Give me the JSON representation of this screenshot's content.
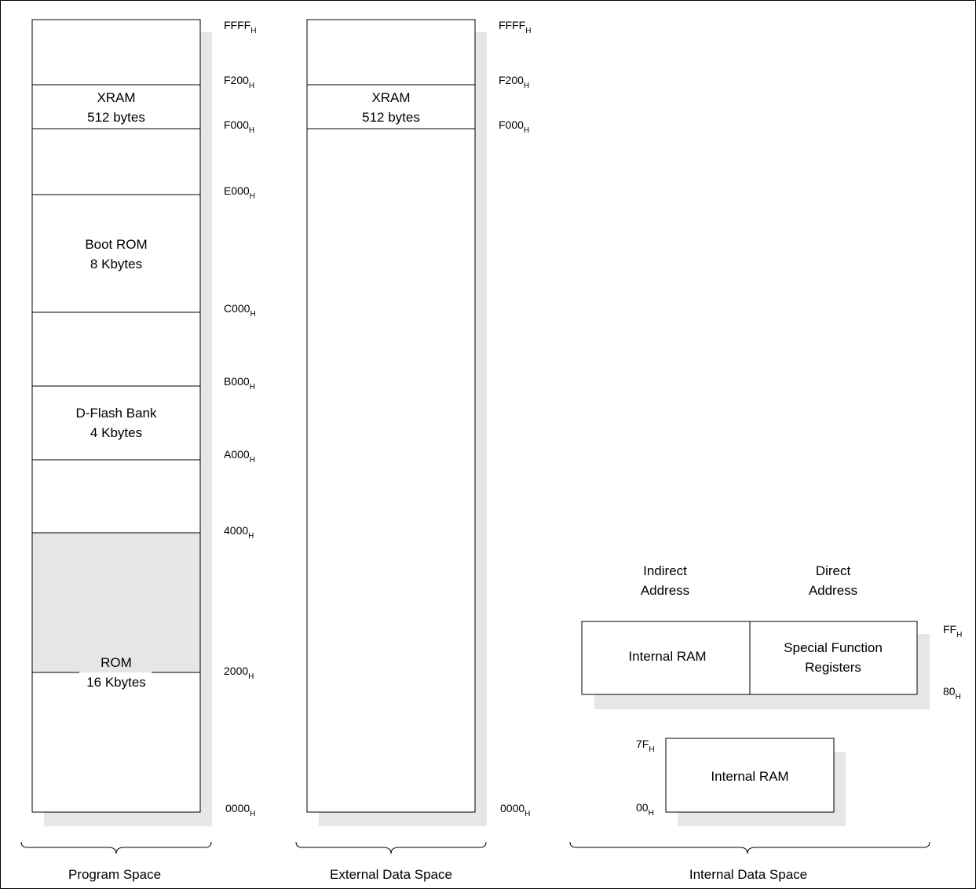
{
  "program_space": {
    "title": "Program Space",
    "regions": [
      {
        "line1": "XRAM",
        "line2": "512 bytes"
      },
      {
        "line1": "Boot ROM",
        "line2": "8 Kbytes"
      },
      {
        "line1": "D-Flash Bank",
        "line2": "4 Kbytes"
      },
      {
        "line1": "ROM",
        "line2": "16 Kbytes"
      }
    ],
    "addresses": [
      {
        "base": "FFFF",
        "sub": "H"
      },
      {
        "base": "F200",
        "sub": "H"
      },
      {
        "base": "F000",
        "sub": "H"
      },
      {
        "base": "E000",
        "sub": "H"
      },
      {
        "base": "C000",
        "sub": "H"
      },
      {
        "base": "B000",
        "sub": "H"
      },
      {
        "base": "A000",
        "sub": "H"
      },
      {
        "base": "4000",
        "sub": "H"
      },
      {
        "base": "2000",
        "sub": "H"
      },
      {
        "base": "0000",
        "sub": "H"
      }
    ]
  },
  "external_data_space": {
    "title": "External Data Space",
    "regions": [
      {
        "line1": "XRAM",
        "line2": "512 bytes"
      }
    ],
    "addresses": [
      {
        "base": "FFFF",
        "sub": "H"
      },
      {
        "base": "F200",
        "sub": "H"
      },
      {
        "base": "F000",
        "sub": "H"
      },
      {
        "base": "0000",
        "sub": "H"
      }
    ]
  },
  "internal_data_space": {
    "title": "Internal Data Space",
    "column_headers": [
      {
        "line1": "Indirect",
        "line2": "Address"
      },
      {
        "line1": "Direct",
        "line2": "Address"
      }
    ],
    "upper_left": "Internal RAM",
    "upper_right": {
      "line1": "Special Function",
      "line2": "Registers"
    },
    "lower": "Internal RAM",
    "addresses": [
      {
        "base": "FF",
        "sub": "H"
      },
      {
        "base": "80",
        "sub": "H"
      },
      {
        "base": "7F",
        "sub": "H"
      },
      {
        "base": "00",
        "sub": "H"
      }
    ]
  }
}
